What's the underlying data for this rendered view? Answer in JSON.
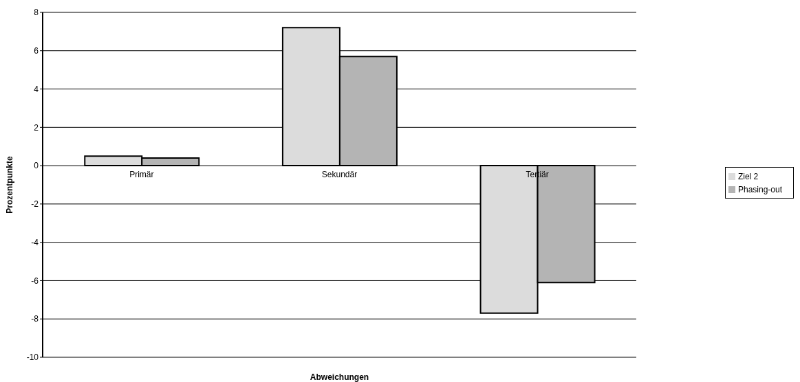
{
  "chart_data": {
    "type": "bar",
    "xlabel": "Abweichungen",
    "ylabel": "Prozentpunkte",
    "categories": [
      "Primär",
      "Sekundär",
      "Tertiär"
    ],
    "series": [
      {
        "name": "Ziel 2",
        "color": "#dcdcdc",
        "values": [
          0.5,
          7.2,
          -7.7
        ]
      },
      {
        "name": "Phasing-out",
        "color": "#b4b4b4",
        "values": [
          0.4,
          5.7,
          -6.1
        ]
      }
    ],
    "ylim": [
      -10,
      8
    ],
    "yticks": [
      -10,
      -8,
      -6,
      -4,
      -2,
      0,
      2,
      4,
      6,
      8
    ],
    "grid": "y",
    "legend": "right"
  }
}
